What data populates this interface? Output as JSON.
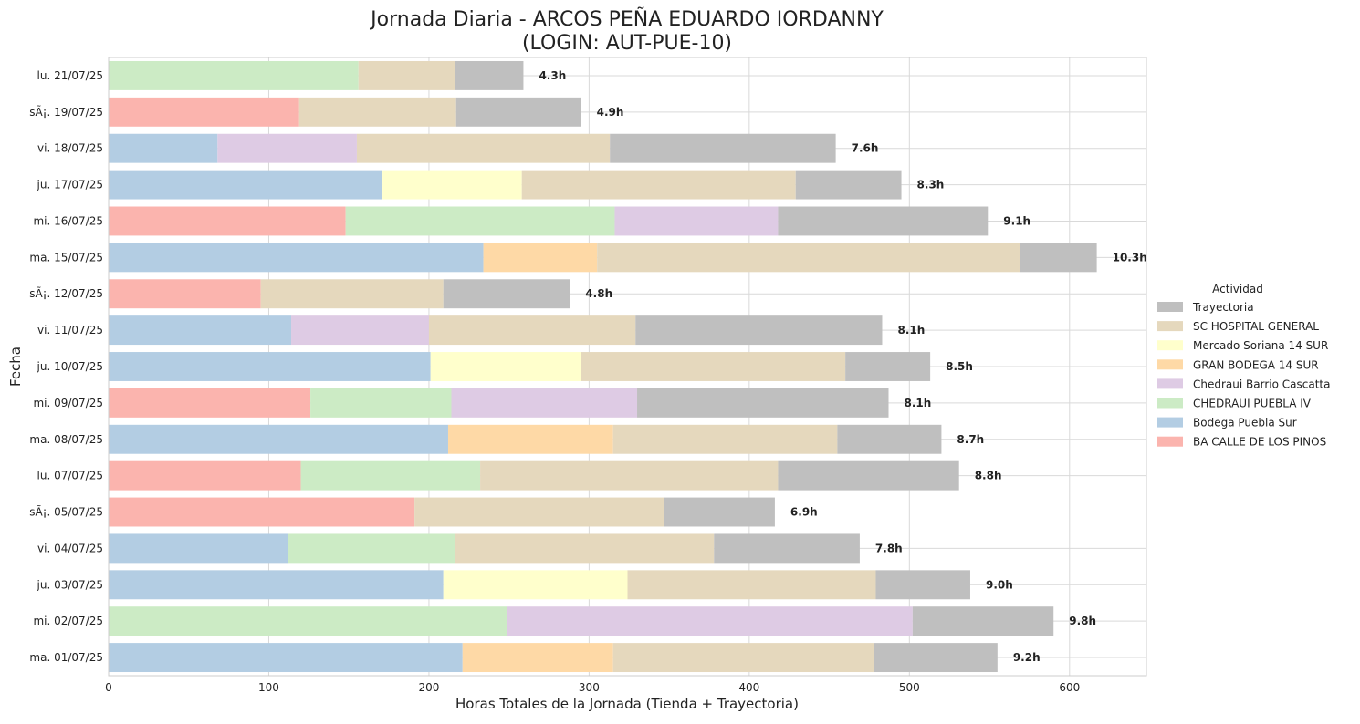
{
  "chart_data": {
    "type": "bar",
    "orientation": "horizontal",
    "stacked": true,
    "title_line1": "Jornada Diaria - ARCOS PEÑA EDUARDO IORDANNY",
    "title_line2": "(LOGIN: AUT-PUE-10)",
    "xlabel": "Horas Totales de la Jornada (Tienda + Trayectoria)",
    "ylabel": "Fecha",
    "xlim": [
      0,
      648
    ],
    "xticks": [
      0,
      100,
      200,
      300,
      400,
      500,
      600
    ],
    "grid": true,
    "legend_position": "center-right",
    "legend_title": "Actividad",
    "legend": [
      {
        "name": "Trayectoria",
        "color": "#bfbfbf"
      },
      {
        "name": "SC HOSPITAL GENERAL",
        "color": "#e5d8bd"
      },
      {
        "name": "Mercado Soriana 14 SUR",
        "color": "#ffffcc"
      },
      {
        "name": "GRAN BODEGA 14 SUR",
        "color": "#fed9a6"
      },
      {
        "name": "Chedraui Barrio Cascatta",
        "color": "#decbe4"
      },
      {
        "name": "CHEDRAUI PUEBLA IV",
        "color": "#ccebc5"
      },
      {
        "name": "Bodega Puebla Sur",
        "color": "#b3cde3"
      },
      {
        "name": "BA CALLE DE LOS PINOS",
        "color": "#fbb4ae"
      }
    ],
    "rows": [
      {
        "date": "lu. 21/07/25",
        "total_label": "4.3h",
        "segments": [
          [
            "CHEDRAUI PUEBLA IV",
            156
          ],
          [
            "SC HOSPITAL GENERAL",
            60
          ],
          [
            "Trayectoria",
            43
          ]
        ]
      },
      {
        "date": "sÃ¡. 19/07/25",
        "total_label": "4.9h",
        "segments": [
          [
            "BA CALLE DE LOS PINOS",
            119
          ],
          [
            "SC HOSPITAL GENERAL",
            98
          ],
          [
            "Trayectoria",
            78
          ]
        ]
      },
      {
        "date": "vi. 18/07/25",
        "total_label": "7.6h",
        "segments": [
          [
            "Bodega Puebla Sur",
            68
          ],
          [
            "Chedraui Barrio Cascatta",
            87
          ],
          [
            "SC HOSPITAL GENERAL",
            158
          ],
          [
            "Trayectoria",
            141
          ]
        ]
      },
      {
        "date": "ju. 17/07/25",
        "total_label": "8.3h",
        "segments": [
          [
            "Bodega Puebla Sur",
            171
          ],
          [
            "Mercado Soriana 14 SUR",
            87
          ],
          [
            "SC HOSPITAL GENERAL",
            171
          ],
          [
            "Trayectoria",
            66
          ]
        ]
      },
      {
        "date": "mi. 16/07/25",
        "total_label": "9.1h",
        "segments": [
          [
            "BA CALLE DE LOS PINOS",
            148
          ],
          [
            "CHEDRAUI PUEBLA IV",
            168
          ],
          [
            "Chedraui Barrio Cascatta",
            102
          ],
          [
            "Trayectoria",
            131
          ]
        ]
      },
      {
        "date": "ma. 15/07/25",
        "total_label": "10.3h",
        "segments": [
          [
            "Bodega Puebla Sur",
            234
          ],
          [
            "GRAN BODEGA 14 SUR",
            71
          ],
          [
            "SC HOSPITAL GENERAL",
            264
          ],
          [
            "Trayectoria",
            48
          ]
        ]
      },
      {
        "date": "sÃ¡. 12/07/25",
        "total_label": "4.8h",
        "segments": [
          [
            "BA CALLE DE LOS PINOS",
            95
          ],
          [
            "SC HOSPITAL GENERAL",
            114
          ],
          [
            "Trayectoria",
            79
          ]
        ]
      },
      {
        "date": "vi. 11/07/25",
        "total_label": "8.1h",
        "segments": [
          [
            "Bodega Puebla Sur",
            114
          ],
          [
            "Chedraui Barrio Cascatta",
            86
          ],
          [
            "SC HOSPITAL GENERAL",
            129
          ],
          [
            "Trayectoria",
            154
          ]
        ]
      },
      {
        "date": "ju. 10/07/25",
        "total_label": "8.5h",
        "segments": [
          [
            "Bodega Puebla Sur",
            201
          ],
          [
            "Mercado Soriana 14 SUR",
            94
          ],
          [
            "SC HOSPITAL GENERAL",
            165
          ],
          [
            "Trayectoria",
            53
          ]
        ]
      },
      {
        "date": "mi. 09/07/25",
        "total_label": "8.1h",
        "segments": [
          [
            "BA CALLE DE LOS PINOS",
            126
          ],
          [
            "CHEDRAUI PUEBLA IV",
            88
          ],
          [
            "Chedraui Barrio Cascatta",
            116
          ],
          [
            "Trayectoria",
            157
          ]
        ]
      },
      {
        "date": "ma. 08/07/25",
        "total_label": "8.7h",
        "segments": [
          [
            "Bodega Puebla Sur",
            212
          ],
          [
            "GRAN BODEGA 14 SUR",
            103
          ],
          [
            "SC HOSPITAL GENERAL",
            140
          ],
          [
            "Trayectoria",
            65
          ]
        ]
      },
      {
        "date": "lu. 07/07/25",
        "total_label": "8.8h",
        "segments": [
          [
            "BA CALLE DE LOS PINOS",
            120
          ],
          [
            "CHEDRAUI PUEBLA IV",
            112
          ],
          [
            "SC HOSPITAL GENERAL",
            186
          ],
          [
            "Trayectoria",
            113
          ]
        ]
      },
      {
        "date": "sÃ¡. 05/07/25",
        "total_label": "6.9h",
        "segments": [
          [
            "BA CALLE DE LOS PINOS",
            191
          ],
          [
            "SC HOSPITAL GENERAL",
            156
          ],
          [
            "Trayectoria",
            69
          ]
        ]
      },
      {
        "date": "vi. 04/07/25",
        "total_label": "7.8h",
        "segments": [
          [
            "Bodega Puebla Sur",
            112
          ],
          [
            "CHEDRAUI PUEBLA IV",
            104
          ],
          [
            "SC HOSPITAL GENERAL",
            162
          ],
          [
            "Trayectoria",
            91
          ]
        ]
      },
      {
        "date": "ju. 03/07/25",
        "total_label": "9.0h",
        "segments": [
          [
            "Bodega Puebla Sur",
            209
          ],
          [
            "Mercado Soriana 14 SUR",
            115
          ],
          [
            "SC HOSPITAL GENERAL",
            155
          ],
          [
            "Trayectoria",
            59
          ]
        ]
      },
      {
        "date": "mi. 02/07/25",
        "total_label": "9.8h",
        "segments": [
          [
            "CHEDRAUI PUEBLA IV",
            249
          ],
          [
            "Chedraui Barrio Cascatta",
            253
          ],
          [
            "Trayectoria",
            88
          ]
        ]
      },
      {
        "date": "ma. 01/07/25",
        "total_label": "9.2h",
        "segments": [
          [
            "Bodega Puebla Sur",
            221
          ],
          [
            "GRAN BODEGA 14 SUR",
            94
          ],
          [
            "SC HOSPITAL GENERAL",
            163
          ],
          [
            "Trayectoria",
            77
          ]
        ]
      }
    ]
  }
}
